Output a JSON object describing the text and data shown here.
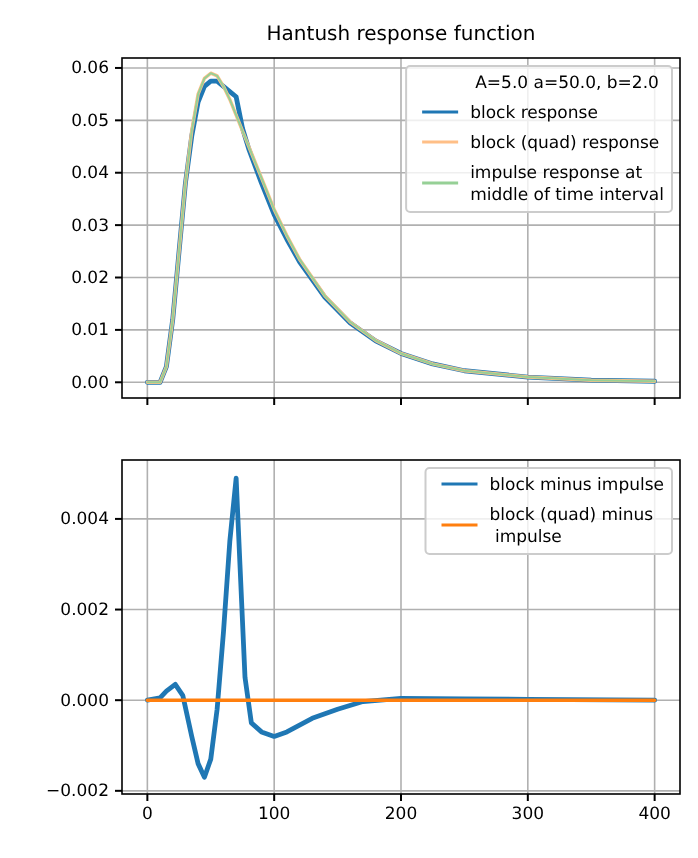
{
  "chart_data": [
    {
      "type": "line",
      "title": "Hantush response function",
      "legend_title": "A=5.0 a=50.0, b=2.0",
      "x": [
        0,
        5,
        10,
        15,
        20,
        25,
        30,
        35,
        40,
        45,
        50,
        55,
        60,
        65,
        70,
        75,
        80,
        90,
        100,
        110,
        120,
        140,
        160,
        180,
        200,
        225,
        250,
        300,
        350,
        400
      ],
      "series": [
        {
          "name": "block response",
          "color": "#1f77b4",
          "x": [
            0,
            5,
            10,
            15,
            20,
            25,
            30,
            35,
            40,
            45,
            50,
            55,
            60,
            65,
            70,
            75,
            80,
            90,
            100,
            110,
            120,
            140,
            160,
            180,
            200,
            225,
            250,
            300,
            350,
            400
          ],
          "values": [
            0,
            0,
            0,
            0.003,
            0.012,
            0.025,
            0.038,
            0.047,
            0.0535,
            0.0565,
            0.0575,
            0.0575,
            0.0565,
            0.0555,
            0.0545,
            0.0485,
            0.0445,
            0.038,
            0.032,
            0.0273,
            0.023,
            0.0162,
            0.0113,
            0.0079,
            0.0055,
            0.0035,
            0.0022,
            0.001,
            0.0004,
            0.0002
          ]
        },
        {
          "name": "block (quad) response",
          "color": "#ffbf87",
          "values": [
            0,
            0,
            0,
            0.003,
            0.012,
            0.025,
            0.038,
            0.048,
            0.055,
            0.058,
            0.059,
            0.0585,
            0.0565,
            0.054,
            0.051,
            0.048,
            0.045,
            0.039,
            0.033,
            0.028,
            0.0235,
            0.0165,
            0.0115,
            0.008,
            0.0055,
            0.0035,
            0.0022,
            0.001,
            0.0004,
            0.0002
          ]
        },
        {
          "name": "impulse response at\nmiddle of time interval",
          "color": "#96d096",
          "values": [
            0,
            0,
            0,
            0.003,
            0.012,
            0.025,
            0.038,
            0.048,
            0.055,
            0.058,
            0.059,
            0.0585,
            0.0565,
            0.054,
            0.051,
            0.048,
            0.045,
            0.039,
            0.033,
            0.028,
            0.0235,
            0.0165,
            0.0115,
            0.008,
            0.0055,
            0.0035,
            0.0022,
            0.001,
            0.0004,
            0.0002
          ]
        }
      ],
      "xlim": [
        -20,
        420
      ],
      "xticks": [
        0,
        100,
        200,
        300,
        400
      ],
      "ylim": [
        -0.003,
        0.0619
      ],
      "yticks": [
        {
          "value": 0,
          "label": "0.00"
        },
        {
          "value": 0.01,
          "label": "0.01"
        },
        {
          "value": 0.02,
          "label": "0.02"
        },
        {
          "value": 0.03,
          "label": "0.03"
        },
        {
          "value": 0.04,
          "label": "0.04"
        },
        {
          "value": 0.05,
          "label": "0.05"
        },
        {
          "value": 0.06,
          "label": "0.06"
        }
      ],
      "grid": true,
      "legend": "top right",
      "tick_labels": "y"
    },
    {
      "type": "line",
      "series": [
        {
          "name": "block minus impulse",
          "color": "#1f77b4",
          "x": [
            0,
            10,
            15,
            22,
            28,
            35,
            40,
            45,
            50,
            55,
            60,
            65,
            70,
            73,
            77,
            82,
            90,
            100,
            110,
            130,
            150,
            170,
            200,
            250,
            300,
            400
          ],
          "values": [
            0,
            5e-05,
            0.0002,
            0.00035,
            0.0001,
            -0.0008,
            -0.0014,
            -0.0017,
            -0.0013,
            -0.0002,
            0.0015,
            0.0035,
            0.0049,
            0.003,
            0.0005,
            -0.0005,
            -0.0007,
            -0.0008,
            -0.0007,
            -0.0004,
            -0.0002,
            -3e-05,
            4e-05,
            3e-05,
            2e-05,
            0
          ]
        },
        {
          "name": "block (quad) minus\n impulse",
          "color": "#ff7f0e",
          "x": [
            0,
            400
          ],
          "values": [
            0,
            0
          ]
        }
      ],
      "xlim": [
        -20,
        420
      ],
      "xticks": [
        0,
        100,
        200,
        300,
        400
      ],
      "ylim": [
        -0.00207,
        0.0053
      ],
      "yticks": [
        {
          "value": -0.002,
          "label": "−0.002"
        },
        {
          "value": 0,
          "label": "0.000"
        },
        {
          "value": 0.002,
          "label": "0.002"
        },
        {
          "value": 0.004,
          "label": "0.004"
        }
      ],
      "grid": true,
      "legend": "top right"
    }
  ]
}
